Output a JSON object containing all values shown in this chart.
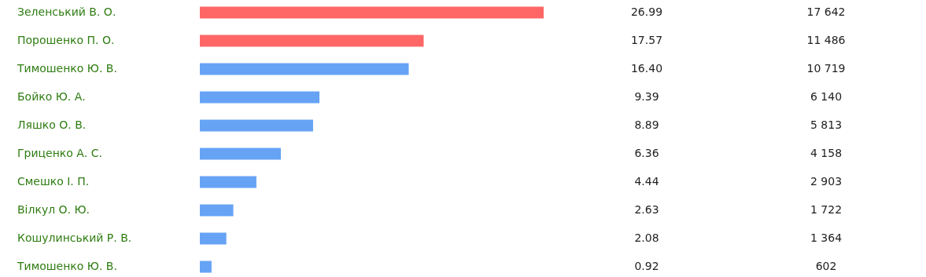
{
  "chart_data": {
    "type": "bar",
    "orientation": "horizontal",
    "value_labels": [
      "26.99",
      "17.57",
      "16.40",
      "9.39",
      "8.89",
      "6.36",
      "4.44",
      "2.63",
      "2.08",
      "0.92"
    ],
    "categories": [
      "Зеленський В. О.",
      "Порошенко П. О.",
      "Тимошенко Ю. В.",
      "Бойко Ю. А.",
      "Ляшко О. В.",
      "Гриценко А. С.",
      "Смешко І. П.",
      "Вілкул О. Ю.",
      "Кошулинський Р. В.",
      "Тимошенко Ю. В."
    ],
    "values": [
      26.99,
      17.57,
      16.4,
      9.39,
      8.89,
      6.36,
      4.44,
      2.63,
      2.08,
      0.92
    ],
    "colors": [
      "#ff6666",
      "#ff6666",
      "#66a3f5",
      "#66a3f5",
      "#66a3f5",
      "#66a3f5",
      "#66a3f5",
      "#66a3f5",
      "#66a3f5",
      "#66a3f5"
    ],
    "annotations": [
      "17 642",
      "11 486",
      "10 719",
      "6 140",
      "5 813",
      "4 158",
      "2 903",
      "1 722",
      "1 364",
      "602"
    ]
  }
}
